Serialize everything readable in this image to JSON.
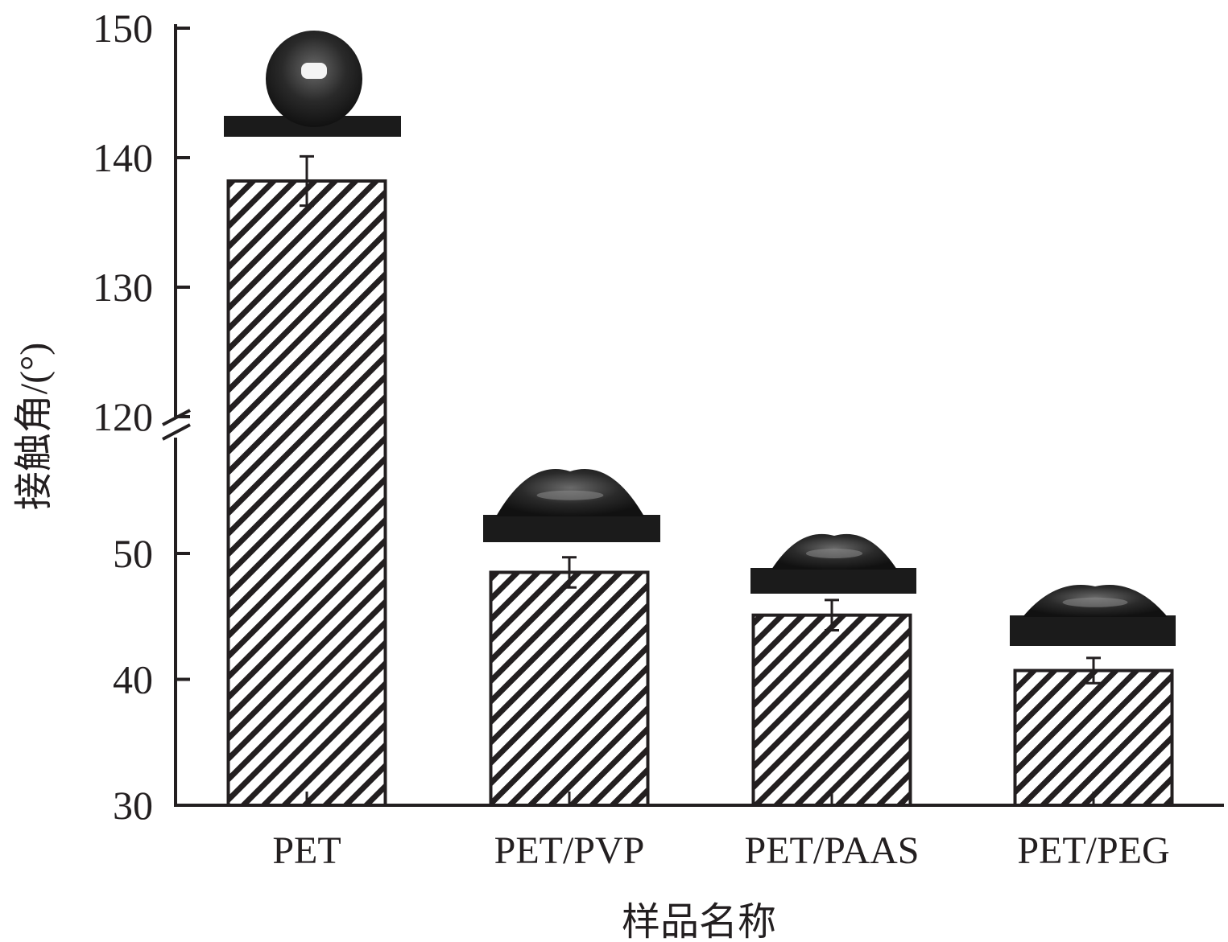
{
  "chart_data": {
    "type": "bar",
    "xlabel": "样品名称",
    "ylabel": "接触角/(°)",
    "categories": [
      "PET",
      "PET/PVP",
      "PET/PAAS",
      "PET/PEG"
    ],
    "values": [
      138.2,
      48.5,
      45.1,
      40.7
    ],
    "errors": [
      1.9,
      1.2,
      1.2,
      1.0
    ],
    "ylim": [
      30,
      150
    ],
    "axis_break": [
      53,
      118
    ],
    "yticks": [
      "30",
      "40",
      "50",
      "120",
      "130",
      "140",
      "150"
    ],
    "bar_pattern": "diagonal-hatch",
    "bar_color": "#231f20",
    "grid": false,
    "legend": "none",
    "insets": [
      {
        "category": "PET",
        "depicts": "droplet-photo"
      },
      {
        "category": "PET/PVP",
        "depicts": "droplet-photo"
      },
      {
        "category": "PET/PAAS",
        "depicts": "droplet-photo"
      },
      {
        "category": "PET/PEG",
        "depicts": "droplet-photo"
      }
    ]
  }
}
